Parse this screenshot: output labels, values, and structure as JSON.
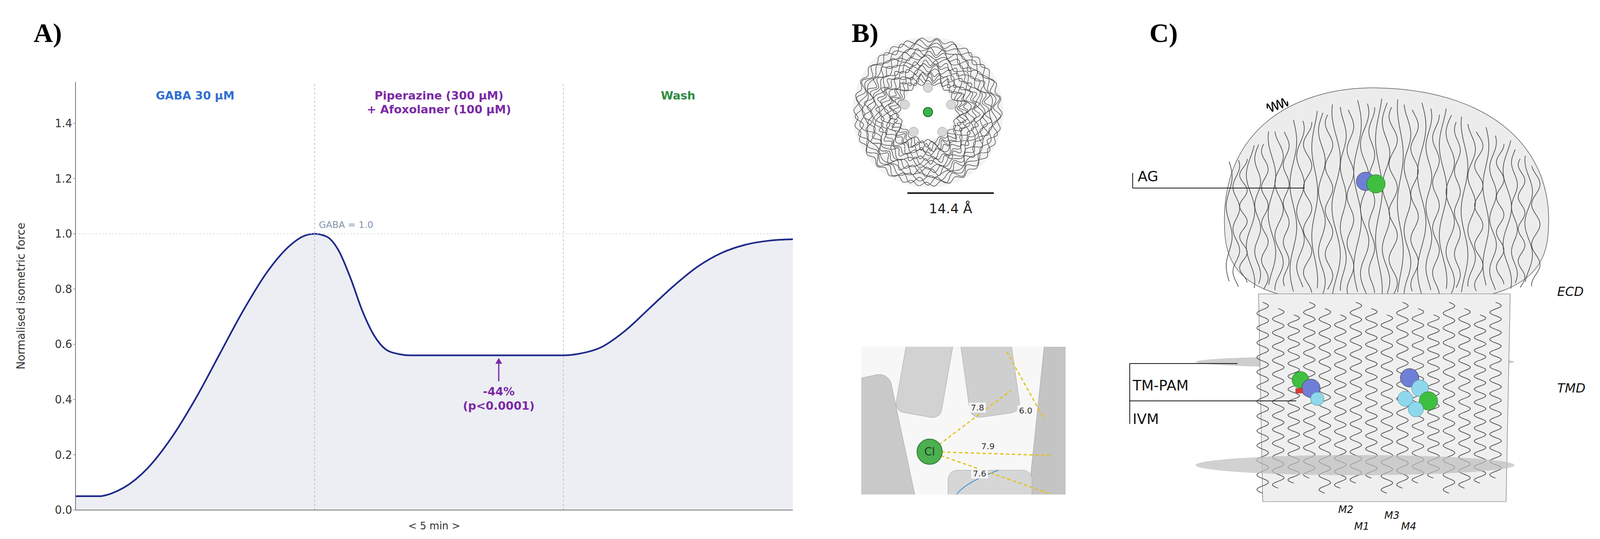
{
  "panel_labels": [
    "A)",
    "B)",
    "C)"
  ],
  "chart_data": {
    "type": "area",
    "y_label": "Normalised isometric force",
    "x_label": "< 5 min >",
    "x": [
      0,
      0.5,
      1,
      1.5,
      2,
      3,
      4,
      5,
      6,
      7,
      8,
      9,
      9.5,
      10,
      10.5,
      11,
      11.5,
      12,
      12.5,
      13,
      13.5,
      14,
      15,
      16,
      17,
      18,
      19,
      20,
      20.4,
      21,
      22,
      23,
      24,
      25,
      26,
      27,
      28,
      29,
      30
    ],
    "values": [
      0.05,
      0.05,
      0.05,
      0.06,
      0.08,
      0.15,
      0.26,
      0.4,
      0.56,
      0.72,
      0.86,
      0.96,
      0.99,
      1.0,
      0.99,
      0.94,
      0.84,
      0.72,
      0.63,
      0.58,
      0.565,
      0.56,
      0.56,
      0.56,
      0.56,
      0.56,
      0.56,
      0.56,
      0.56,
      0.565,
      0.59,
      0.65,
      0.73,
      0.81,
      0.88,
      0.93,
      0.96,
      0.975,
      0.98
    ],
    "color": "#1f2a8a",
    "xlim": [
      0,
      30
    ],
    "ylim": [
      0,
      1.55
    ],
    "yticks": [
      {
        "value": 0,
        "label": "0.0"
      },
      0.2,
      0.4,
      0.6,
      0.8,
      {
        "value": 1,
        "label": "1.0"
      },
      1.2,
      1.4
    ],
    "grid": false,
    "tick_labels": "y",
    "phases": [
      {
        "label": [
          "GABA 30 µM"
        ],
        "start": 0,
        "end": 10,
        "color": "#2f6fd1"
      },
      {
        "label": [
          "Piperazine (300 µM)",
          "+ Afoxolaner (100 µM)"
        ],
        "start": 10,
        "end": 20.4,
        "color": "#7b2aa6"
      },
      {
        "label": [
          "Wash"
        ],
        "start": 20.4,
        "end": 30,
        "color": "#2e8b3e"
      }
    ],
    "reference_line": {
      "y": 1,
      "label": "GABA = 1.0"
    },
    "annotation": {
      "text": [
        "-44%",
        "(p<0.0001)"
      ],
      "x": 17.7,
      "y": 0.56,
      "color": "#7b2aa6"
    }
  },
  "panel_b": {
    "scale_bar": "14.4 Å",
    "ion": "Cl",
    "distance_labels": [
      "7.8",
      "6.0",
      "7.9",
      "7.6"
    ]
  },
  "panel_c": {
    "site_labels": [
      "AG",
      "TM-PAM",
      "IVM"
    ],
    "domain_labels": [
      "ECD",
      "TMD"
    ],
    "helix_labels": [
      "M2",
      "M3",
      "M1",
      "M4"
    ]
  }
}
